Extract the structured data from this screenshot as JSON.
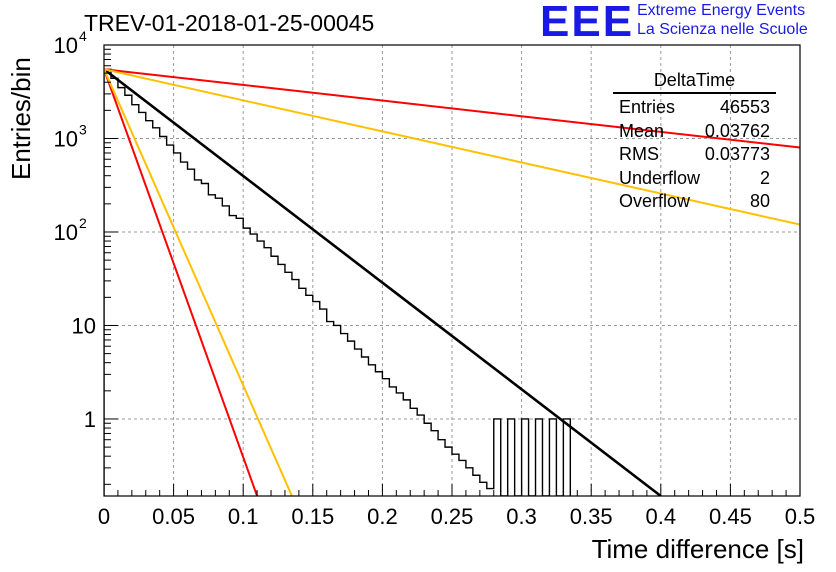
{
  "title": "TREV-01-2018-01-25-00045",
  "logo": {
    "mark": "EEE",
    "line1": "Extreme Energy Events",
    "line2": "La Scienza nelle Scuole"
  },
  "stats": {
    "name": "DeltaTime",
    "rows": [
      {
        "label": "Entries",
        "value": "46553"
      },
      {
        "label": "Mean",
        "value": "0.03762"
      },
      {
        "label": "RMS",
        "value": "0.03773"
      },
      {
        "label": "Underflow",
        "value": "2"
      },
      {
        "label": "Overflow",
        "value": "80"
      }
    ]
  },
  "chart_data": {
    "type": "line",
    "title": "TREV-01-2018-01-25-00045",
    "xlabel": "Time difference [s]",
    "ylabel": "Entries/bin",
    "xlim": [
      0,
      0.5
    ],
    "ylim": [
      0.15,
      10000
    ],
    "yscale": "log",
    "grid": true,
    "x_ticks": [
      "0",
      "0.05",
      "0.1",
      "0.15",
      "0.2",
      "0.25",
      "0.3",
      "0.35",
      "0.4",
      "0.45",
      "0.5"
    ],
    "y_ticks": [
      {
        "value": 1,
        "label": "1"
      },
      {
        "value": 10,
        "label": "10"
      },
      {
        "value": 100,
        "label": "10",
        "exp": "2"
      },
      {
        "value": 1000,
        "label": "10",
        "exp": "3"
      },
      {
        "value": 10000,
        "label": "10",
        "exp": "4"
      }
    ],
    "histogram": {
      "color": "#000000",
      "bin_width": 0.005,
      "bins": [
        {
          "x": 0.0,
          "y": 5500
        },
        {
          "x": 0.005,
          "y": 4400
        },
        {
          "x": 0.01,
          "y": 3500
        },
        {
          "x": 0.015,
          "y": 2900
        },
        {
          "x": 0.02,
          "y": 2300
        },
        {
          "x": 0.025,
          "y": 1900
        },
        {
          "x": 0.03,
          "y": 1550
        },
        {
          "x": 0.035,
          "y": 1300
        },
        {
          "x": 0.04,
          "y": 1050
        },
        {
          "x": 0.045,
          "y": 850
        },
        {
          "x": 0.05,
          "y": 700
        },
        {
          "x": 0.055,
          "y": 560
        },
        {
          "x": 0.06,
          "y": 470
        },
        {
          "x": 0.065,
          "y": 360
        },
        {
          "x": 0.07,
          "y": 330
        },
        {
          "x": 0.075,
          "y": 250
        },
        {
          "x": 0.08,
          "y": 230
        },
        {
          "x": 0.085,
          "y": 190
        },
        {
          "x": 0.09,
          "y": 150
        },
        {
          "x": 0.095,
          "y": 140
        },
        {
          "x": 0.1,
          "y": 110
        },
        {
          "x": 0.105,
          "y": 95
        },
        {
          "x": 0.11,
          "y": 80
        },
        {
          "x": 0.115,
          "y": 68
        },
        {
          "x": 0.12,
          "y": 55
        },
        {
          "x": 0.125,
          "y": 45
        },
        {
          "x": 0.13,
          "y": 37
        },
        {
          "x": 0.135,
          "y": 31
        },
        {
          "x": 0.14,
          "y": 25
        },
        {
          "x": 0.145,
          "y": 21
        },
        {
          "x": 0.15,
          "y": 18
        },
        {
          "x": 0.155,
          "y": 15
        },
        {
          "x": 0.16,
          "y": 11
        },
        {
          "x": 0.165,
          "y": 10
        },
        {
          "x": 0.17,
          "y": 8.2
        },
        {
          "x": 0.175,
          "y": 6.8
        },
        {
          "x": 0.18,
          "y": 5.6
        },
        {
          "x": 0.185,
          "y": 4.6
        },
        {
          "x": 0.19,
          "y": 3.8
        },
        {
          "x": 0.195,
          "y": 3.2
        },
        {
          "x": 0.2,
          "y": 2.7
        },
        {
          "x": 0.205,
          "y": 2.2
        },
        {
          "x": 0.21,
          "y": 1.9
        },
        {
          "x": 0.215,
          "y": 1.6
        },
        {
          "x": 0.22,
          "y": 1.3
        },
        {
          "x": 0.225,
          "y": 1.1
        },
        {
          "x": 0.23,
          "y": 0.9
        },
        {
          "x": 0.235,
          "y": 0.75
        },
        {
          "x": 0.24,
          "y": 0.6
        },
        {
          "x": 0.245,
          "y": 0.5
        },
        {
          "x": 0.25,
          "y": 0.42
        },
        {
          "x": 0.255,
          "y": 0.36
        },
        {
          "x": 0.26,
          "y": 0.3
        },
        {
          "x": 0.265,
          "y": 0.25
        },
        {
          "x": 0.27,
          "y": 0.21
        },
        {
          "x": 0.275,
          "y": 0.18
        },
        {
          "x": 0.28,
          "y": 1
        },
        {
          "x": 0.285,
          "y": 0.15
        },
        {
          "x": 0.29,
          "y": 1
        },
        {
          "x": 0.295,
          "y": 0.15
        },
        {
          "x": 0.3,
          "y": 1
        },
        {
          "x": 0.305,
          "y": 0.15
        },
        {
          "x": 0.31,
          "y": 1
        },
        {
          "x": 0.315,
          "y": 0.15
        },
        {
          "x": 0.32,
          "y": 1
        },
        {
          "x": 0.325,
          "y": 0.15
        },
        {
          "x": 0.33,
          "y": 1
        }
      ]
    },
    "series": [
      {
        "color": "#000000",
        "x": [
          0.0,
          0.4
        ],
        "y": [
          5500,
          0.15
        ]
      },
      {
        "color": "#ff0000",
        "x": [
          0.0,
          0.5
        ],
        "y": [
          5500,
          800
        ]
      },
      {
        "color": "#ffc000",
        "x": [
          0.0,
          0.5
        ],
        "y": [
          5500,
          120
        ]
      },
      {
        "color": "#ff0000",
        "x": [
          0.0,
          0.11
        ],
        "y": [
          5500,
          0.15
        ]
      },
      {
        "color": "#ffc000",
        "x": [
          0.0,
          0.135
        ],
        "y": [
          5500,
          0.15
        ]
      }
    ]
  }
}
